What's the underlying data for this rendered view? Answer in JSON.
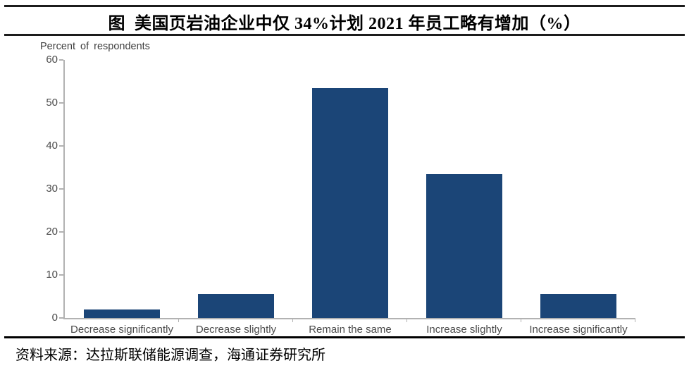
{
  "page": {
    "title": "图  美国页岩油企业中仅 34%计划 2021 年员工略有增加（%）",
    "source_text": "资料来源：达拉斯联储能源调查，海通证券研究所"
  },
  "chart_data": {
    "type": "bar",
    "title": "图 美国页岩油企业中仅34%计划2021年员工略有增加（%）",
    "xlabel": "",
    "ylabel": "Percent of respondents",
    "categories": [
      "Decrease significantly",
      "Decrease slightly",
      "Remain the same",
      "Increase slightly",
      "Increase significantly"
    ],
    "values": [
      2,
      5.5,
      53.5,
      33.5,
      5.5
    ],
    "ylim": [
      0,
      60
    ],
    "yticks": [
      0,
      10,
      20,
      30,
      40,
      50,
      60
    ],
    "grid": false,
    "legend_position": "none",
    "bar_color": "#1B4577",
    "axis_color": "#B2B2B2",
    "label_color": "#4A4A4A"
  }
}
